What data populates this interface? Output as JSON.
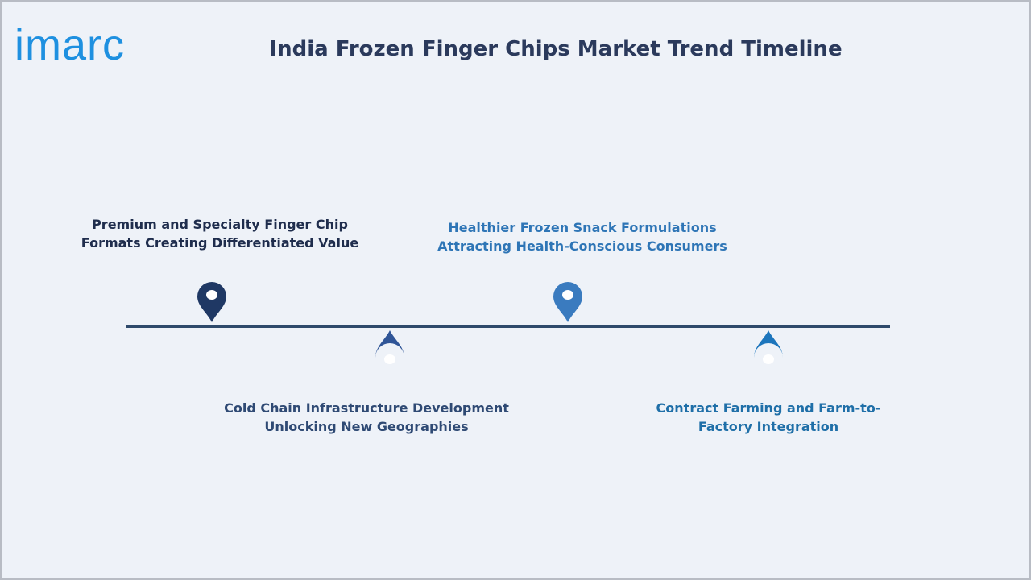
{
  "brand": "imarc",
  "title": "India Frozen Finger Chips Market Trend Timeline",
  "items": [
    {
      "lines": [
        "Premium and Specialty Finger Chip",
        "Formats Creating Differentiated Value"
      ]
    },
    {
      "lines": [
        "Cold Chain Infrastructure Development",
        "Unlocking New Geographies"
      ]
    },
    {
      "lines": [
        "Healthier Frozen Snack Formulations",
        "Attracting Health-Conscious Consumers"
      ]
    },
    {
      "lines": [
        "Contract Farming and Farm-to-",
        "Factory Integration"
      ]
    }
  ]
}
